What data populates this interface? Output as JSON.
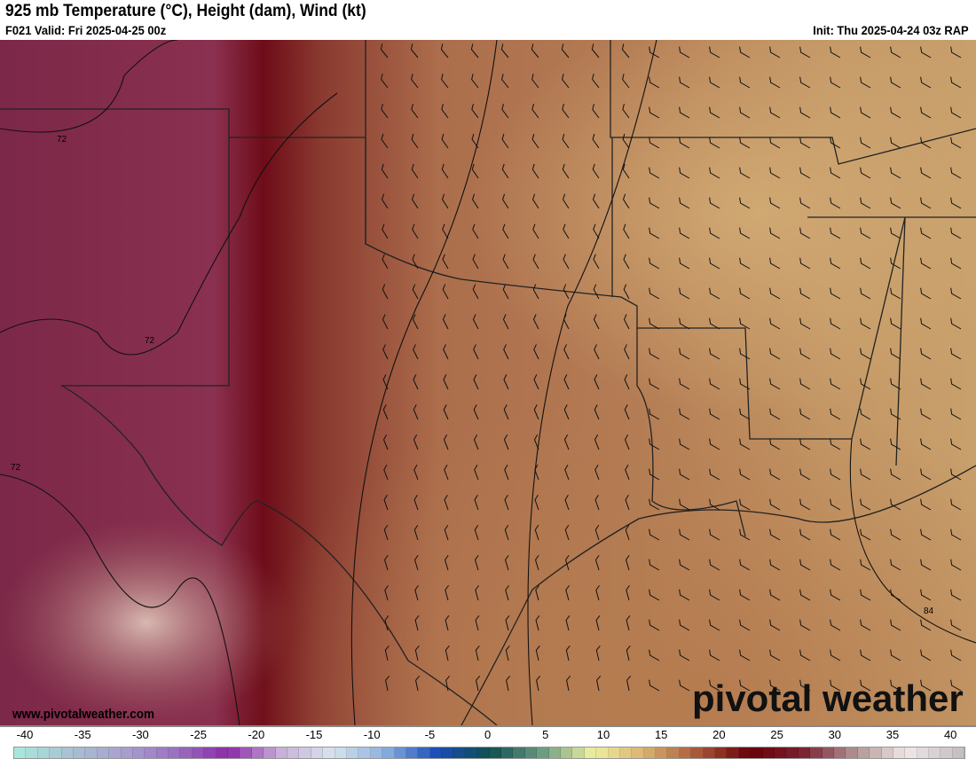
{
  "header": {
    "title": "925 mb Temperature (°C), Height (dam), Wind (kt)",
    "valid": "F021 Valid: Fri 2025-04-25 00z",
    "init": "Init: Thu 2025-04-24 03z RAP"
  },
  "map": {
    "contour_labels": [
      "72",
      "72",
      "72",
      "84"
    ],
    "colors": {
      "base": "#b07650",
      "warm_west": "#7a1424",
      "plum": "#8a3050",
      "tan_east": "#c9a06c",
      "gulf": "#bb8558",
      "borders": "#333333"
    }
  },
  "watermark": {
    "url": "www.pivotalweather.com",
    "logo": "pivotal weather"
  },
  "colorbar": {
    "ticks": [
      "-40",
      "-35",
      "-30",
      "-25",
      "-20",
      "-15",
      "-10",
      "-5",
      "0",
      "5",
      "10",
      "15",
      "20",
      "25",
      "30",
      "35",
      "40"
    ],
    "stops": [
      "#a8e6dc",
      "#a8c0d0",
      "#a8a0d0",
      "#9a70c0",
      "#8c2aa8",
      "#c8b0d8",
      "#d8e4ec",
      "#8ab0e0",
      "#1a4cb8",
      "#0e5050",
      "#6a9a80",
      "#f0f0a0",
      "#d8b070",
      "#a85838",
      "#6a0008",
      "#7a2030",
      "#b09090",
      "#f0e8e8",
      "#c8c0c0"
    ]
  }
}
